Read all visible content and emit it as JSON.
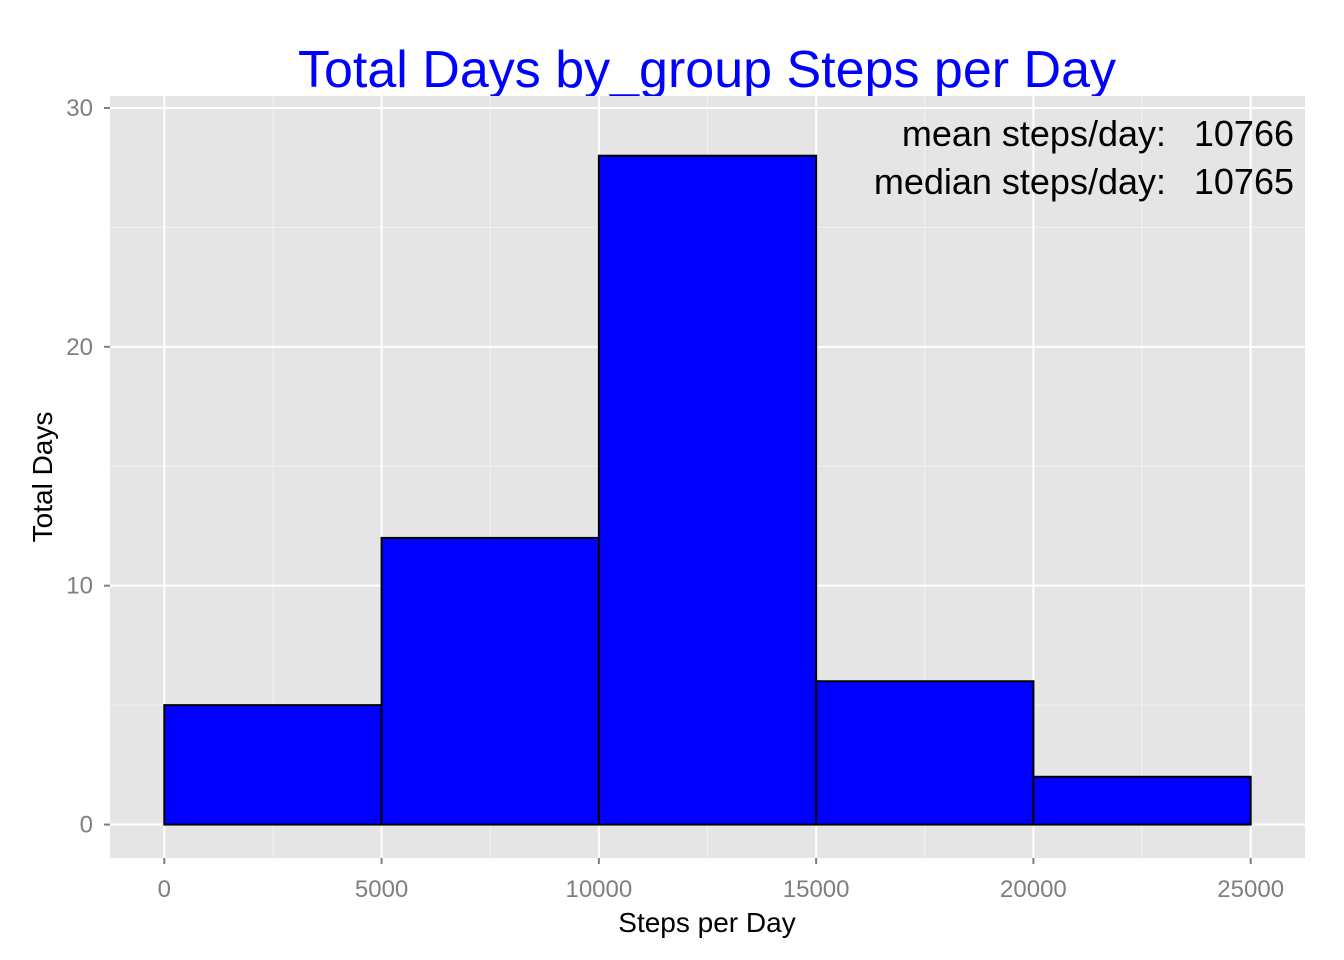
{
  "chart_data": {
    "type": "bar",
    "title": "Total Days by_group Steps per Day",
    "xlabel": "Steps per Day",
    "ylabel": "Total Days",
    "bins": [
      {
        "x0": 0,
        "x1": 5000,
        "value": 5
      },
      {
        "x0": 5000,
        "x1": 10000,
        "value": 12
      },
      {
        "x0": 10000,
        "x1": 15000,
        "value": 28
      },
      {
        "x0": 15000,
        "x1": 20000,
        "value": 6
      },
      {
        "x0": 20000,
        "x1": 25000,
        "value": 2
      }
    ],
    "xlim": [
      -1250,
      26250
    ],
    "ylim": [
      -1.4,
      30.5
    ],
    "xticks": [
      0,
      5000,
      10000,
      15000,
      20000,
      25000
    ],
    "yticks": [
      0,
      10,
      20,
      30
    ],
    "grid": true,
    "bar_fill": "#0000ff",
    "bar_stroke": "#000000",
    "title_color": "#0000ff",
    "panel_background": "#e5e5e5",
    "annotations": [
      {
        "label": "mean steps/day:",
        "value": "10766"
      },
      {
        "label": "median steps/day:",
        "value": "10765"
      }
    ]
  }
}
